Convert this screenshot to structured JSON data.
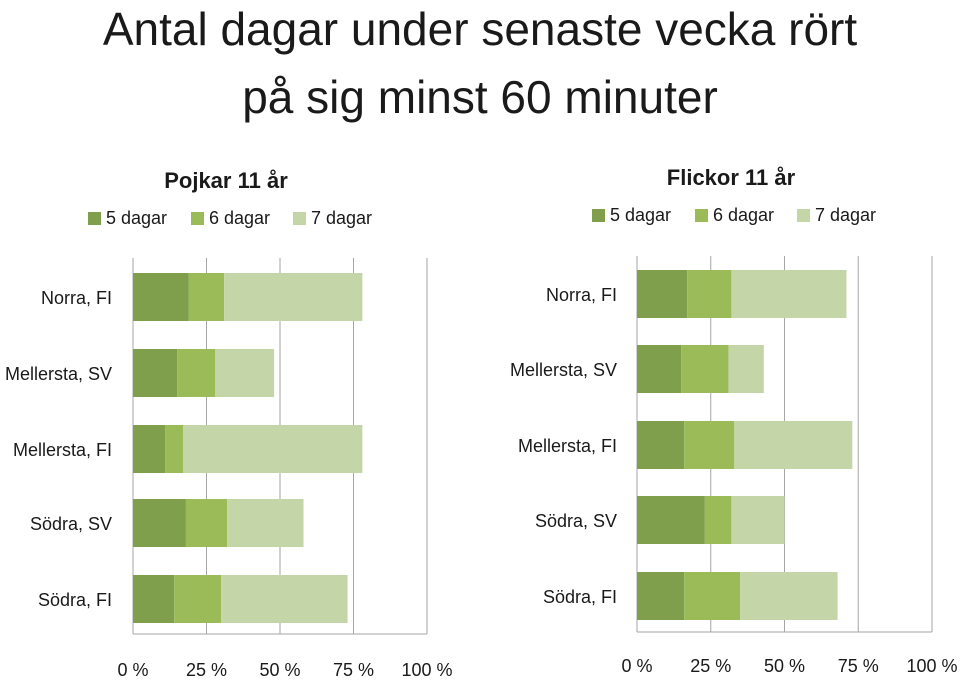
{
  "title_line1": "Antal dagar under senaste vecka rört",
  "title_line2": "på sig minst 60 minuter",
  "colors": {
    "5 dagar": "#7f9f4d",
    "6 dagar": "#9bbb59",
    "7 dagar": "#c4d6a8",
    "grid": "#a6a6a6"
  },
  "chart_data": [
    {
      "type": "bar",
      "orientation": "horizontal",
      "stacked": true,
      "title": "Pojkar 11 år",
      "categories": [
        "Norra, FI",
        "Mellersta, SV",
        "Mellersta, FI",
        "Södra, SV",
        "Södra, FI"
      ],
      "series": [
        {
          "name": "5 dagar",
          "values": [
            19,
            15,
            11,
            18,
            14
          ]
        },
        {
          "name": "6 dagar",
          "values": [
            12,
            13,
            6,
            14,
            16
          ]
        },
        {
          "name": "7 dagar",
          "values": [
            47,
            20,
            61,
            26,
            43
          ]
        }
      ],
      "xlim": [
        0,
        100
      ],
      "x_ticks": [
        "0 %",
        "25 %",
        "50 %",
        "75 %",
        "100 %"
      ],
      "legend": "top",
      "grid": true
    },
    {
      "type": "bar",
      "orientation": "horizontal",
      "stacked": true,
      "title": "Flickor 11 år",
      "categories": [
        "Norra, FI",
        "Mellersta, SV",
        "Mellersta, FI",
        "Södra, SV",
        "Södra, FI"
      ],
      "series": [
        {
          "name": "5 dagar",
          "values": [
            17,
            15,
            16,
            23,
            16
          ]
        },
        {
          "name": "6 dagar",
          "values": [
            15,
            16,
            17,
            9,
            19
          ]
        },
        {
          "name": "7 dagar",
          "values": [
            39,
            12,
            40,
            18,
            33
          ]
        }
      ],
      "xlim": [
        0,
        100
      ],
      "x_ticks": [
        "0 %",
        "25 %",
        "50 %",
        "75 %",
        "100 %"
      ],
      "legend": "top",
      "grid": true
    }
  ]
}
